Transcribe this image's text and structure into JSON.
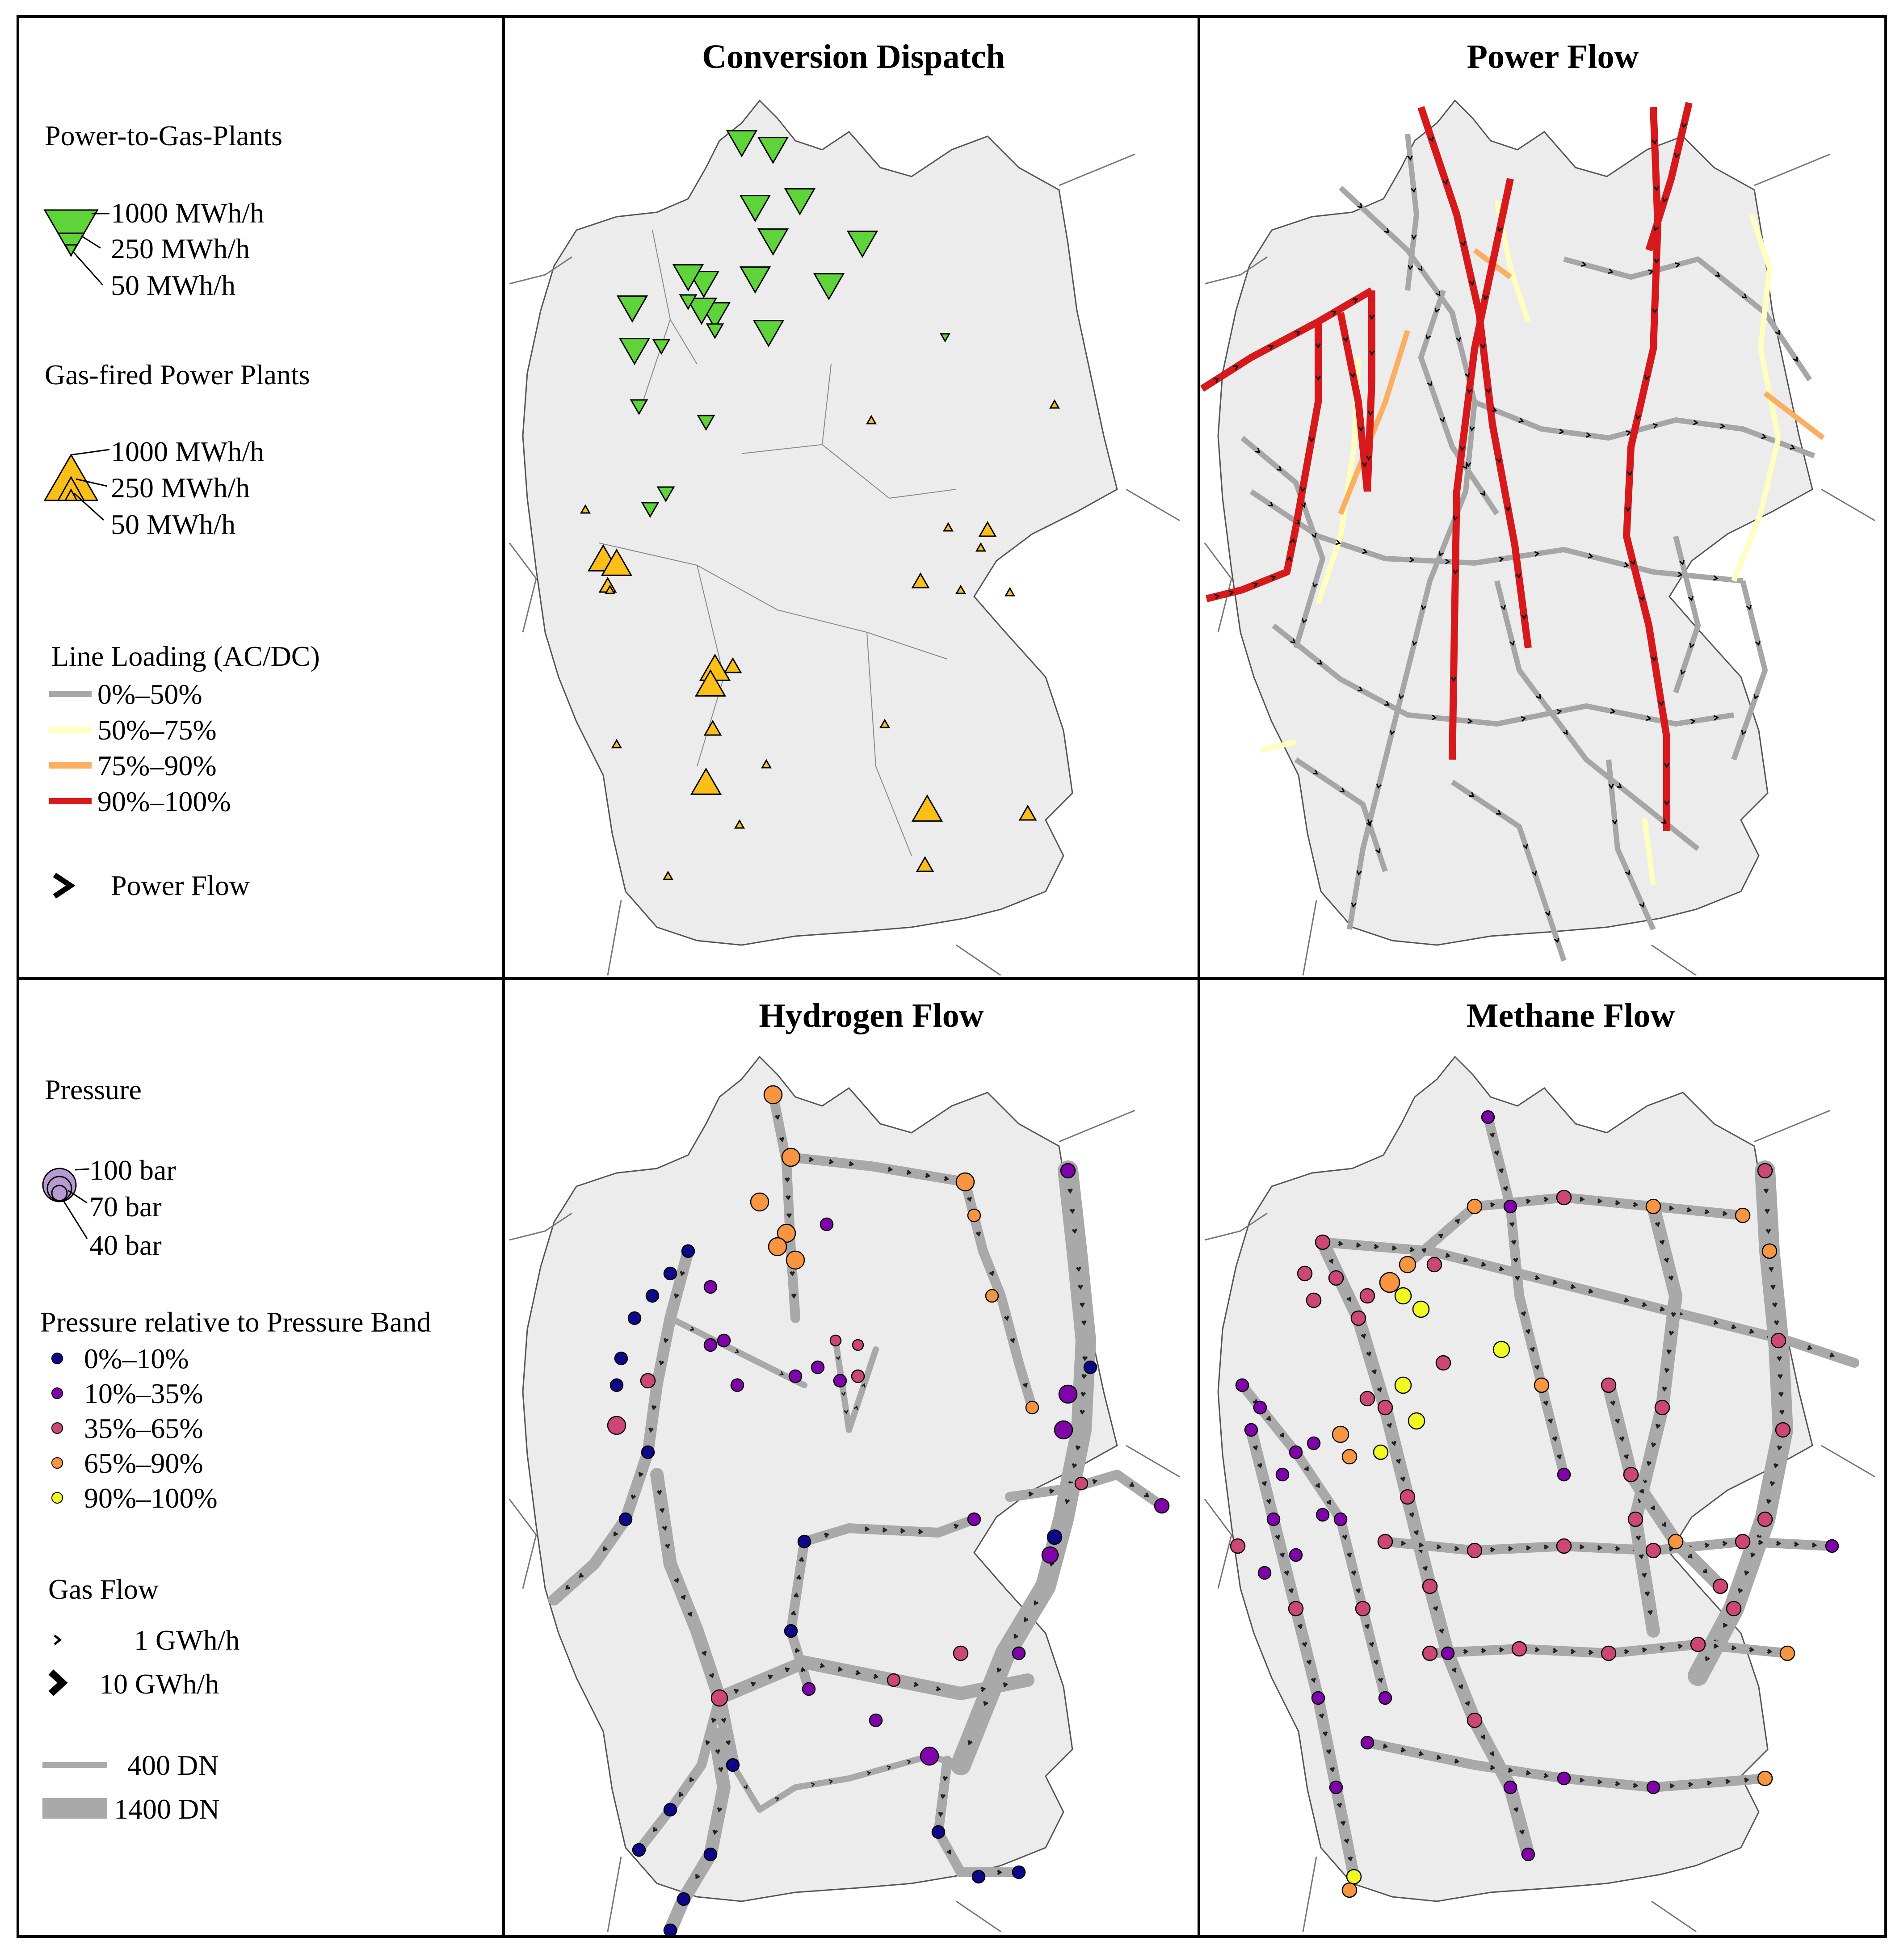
{
  "panels": {
    "conversion_dispatch": "Conversion Dispatch",
    "power_flow": "Power Flow",
    "hydrogen_flow": "Hydrogen Flow",
    "methane_flow": "Methane Flow"
  },
  "legend_top": {
    "ptg_title": "Power-to-Gas-Plants",
    "ptg_sizes": [
      "1000 MWh/h",
      "250 MWh/h",
      "50 MWh/h"
    ],
    "gas_title": "Gas-fired Power Plants",
    "gas_sizes": [
      "1000 MWh/h",
      "250 MWh/h",
      "50 MWh/h"
    ],
    "loading_title": "Line Loading (AC/DC)",
    "loading_bands": [
      {
        "label": "0%–50%",
        "color": "#a6a6a6"
      },
      {
        "label": "50%–75%",
        "color": "#ffffc0"
      },
      {
        "label": "75%–90%",
        "color": "#fdae61"
      },
      {
        "label": "90%–100%",
        "color": "#d7191c"
      }
    ],
    "power_flow_label": "Power Flow"
  },
  "legend_bottom": {
    "pressure_title": "Pressure",
    "pressure_sizes": [
      "100 bar",
      "70 bar",
      "40 bar"
    ],
    "band_title": "Pressure relative to Pressure Band",
    "bands": [
      {
        "label": "0%–10%",
        "color": "#0d0887"
      },
      {
        "label": "10%–35%",
        "color": "#7e03a8"
      },
      {
        "label": "35%–65%",
        "color": "#cc4778"
      },
      {
        "label": "65%–90%",
        "color": "#f89540"
      },
      {
        "label": "90%–100%",
        "color": "#f0f921"
      }
    ],
    "gas_flow_title": "Gas Flow",
    "gas_flow_sizes": [
      "1 GWh/h",
      "10 GWh/h"
    ],
    "diameters": [
      "400 DN",
      "1400 DN"
    ]
  },
  "colors": {
    "ptg": "#5fd33a",
    "gas_plant": "#fbbf17",
    "map_fill": "#ececec",
    "pipe": "#a9a9a9"
  },
  "markers": {
    "ptg_plants_mwh": [
      1000,
      1000,
      1000,
      1000,
      1000,
      1000,
      1000,
      1000,
      1000,
      1000,
      1000,
      1000,
      1000,
      1000,
      1000,
      250,
      250,
      250,
      250,
      250,
      250,
      250,
      50
    ],
    "gas_plants_mwh": [
      1000,
      1000,
      250,
      1000,
      1000,
      250,
      1000,
      1000,
      250,
      250,
      250,
      250,
      250,
      50,
      50,
      50,
      50,
      50,
      50,
      50,
      50,
      50,
      50,
      50,
      50,
      50
    ]
  }
}
